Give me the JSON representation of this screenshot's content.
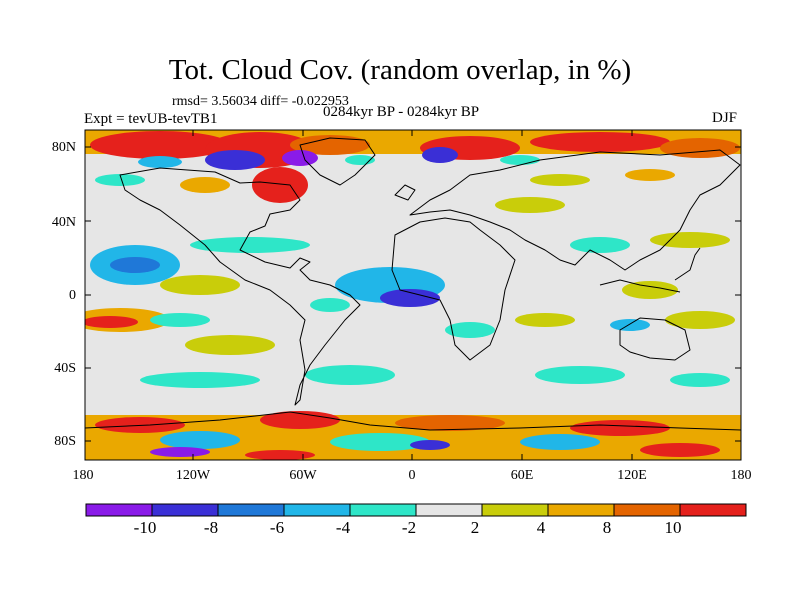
{
  "title": "Tot. Cloud Cov. (random overlap, in %)",
  "stats": "rmsd= 3.56034 diff= -0.022953",
  "experiment": "Expt = tevUB-tevTB1",
  "period": "0284kyr BP - 0284kyr BP",
  "season": "DJF",
  "lat_labels": [
    "80N",
    "40N",
    "0",
    "40S",
    "80S"
  ],
  "lon_labels": [
    "180",
    "120W",
    "60W",
    "0",
    "60E",
    "120E",
    "180"
  ],
  "colorbar": {
    "labels": [
      "-10",
      "-8",
      "-6",
      "-4",
      "-2",
      "2",
      "4",
      "8",
      "10"
    ],
    "colors": [
      "#8a1be8",
      "#3a2fd6",
      "#1f78d8",
      "#21b6e8",
      "#2ee6c8",
      "#e6e6e6",
      "#c9cd0a",
      "#eaa800",
      "#e46400",
      "#e5211c"
    ]
  }
}
